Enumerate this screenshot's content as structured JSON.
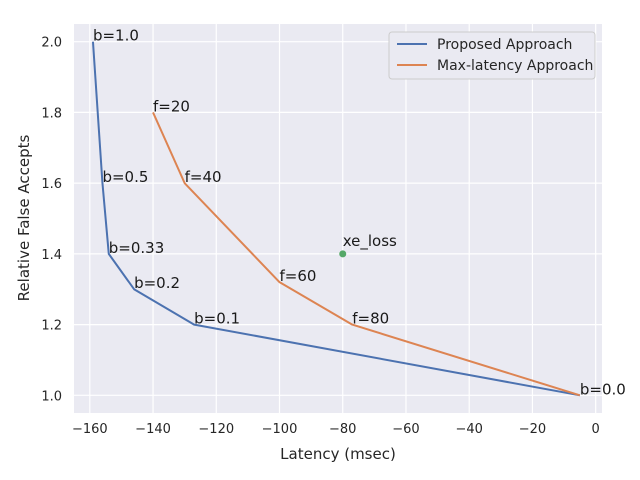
{
  "chart_data": {
    "type": "line",
    "title": "",
    "xlabel": "Latency (msec)",
    "ylabel": "Relative False Accepts",
    "xlim": [
      -165,
      2
    ],
    "ylim": [
      0.95,
      2.05
    ],
    "xticks": [
      -160,
      -140,
      -120,
      -100,
      -80,
      -60,
      -40,
      -20,
      0
    ],
    "yticks": [
      1.0,
      1.2,
      1.4,
      1.6,
      1.8,
      2.0
    ],
    "grid": true,
    "legend_position": "top-right",
    "series": [
      {
        "name": "Proposed Approach",
        "color": "#4c72b0",
        "x": [
          -159,
          -156,
          -154,
          -146,
          -127,
          -5
        ],
        "y": [
          2.0,
          1.6,
          1.4,
          1.3,
          1.2,
          1.0
        ],
        "labels": [
          "b=1.0",
          "b=0.5",
          "b=0.33",
          "b=0.2",
          "b=0.1",
          "b=0.0"
        ]
      },
      {
        "name": "Max-latency Approach",
        "color": "#dd8452",
        "x": [
          -140,
          -130,
          -100,
          -77,
          -5
        ],
        "y": [
          1.8,
          1.6,
          1.32,
          1.2,
          1.0
        ],
        "labels": [
          "f=20",
          "f=40",
          "f=60",
          "f=80",
          ""
        ]
      }
    ],
    "points": [
      {
        "name": "xe_loss",
        "x": -80,
        "y": 1.4,
        "color": "#55a868",
        "label": "xe_loss"
      }
    ]
  }
}
